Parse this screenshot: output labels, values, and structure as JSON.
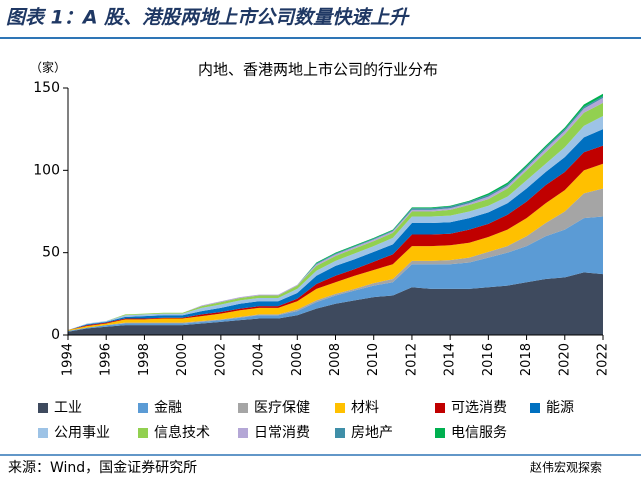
{
  "header": {
    "title": "图表 1：A 股、港股两地上市公司数量快速上升"
  },
  "chart_data": {
    "type": "stacked_area",
    "title": "内地、香港两地上市公司的行业分布",
    "y_unit": "（家）",
    "x": [
      1994,
      1995,
      1996,
      1997,
      1998,
      1999,
      2000,
      2001,
      2002,
      2003,
      2004,
      2005,
      2006,
      2007,
      2008,
      2009,
      2010,
      2011,
      2012,
      2013,
      2014,
      2015,
      2016,
      2017,
      2018,
      2019,
      2020,
      2021,
      2022
    ],
    "xlim": [
      1994,
      2022
    ],
    "xticks": [
      1994,
      1996,
      1998,
      2000,
      2002,
      2004,
      2006,
      2008,
      2010,
      2012,
      2014,
      2016,
      2018,
      2020,
      2022
    ],
    "ylim": [
      0,
      150
    ],
    "yticks": [
      0,
      50,
      100,
      150
    ],
    "series": [
      {
        "name": "工业",
        "color": "#3e4a5e",
        "values": [
          2,
          4,
          5,
          6,
          6,
          6,
          6,
          7,
          8,
          9,
          10,
          10,
          12,
          16,
          19,
          21,
          23,
          24,
          29,
          28,
          28,
          28,
          29,
          30,
          32,
          34,
          35,
          38,
          37
        ]
      },
      {
        "name": "金融",
        "color": "#5b9bd5",
        "values": [
          0.5,
          0.5,
          1,
          1,
          1,
          1,
          1,
          1,
          1,
          1.5,
          2,
          2,
          2.5,
          4,
          5,
          6,
          7,
          8,
          14,
          15,
          15,
          16,
          18,
          20,
          22,
          26,
          29,
          33,
          35
        ]
      },
      {
        "name": "医疗保健",
        "color": "#a5a5a5",
        "values": [
          0,
          0,
          0,
          0.5,
          0.5,
          0.5,
          0.5,
          0.5,
          0.5,
          0.5,
          0.5,
          0.5,
          1,
          1,
          1,
          1,
          1.5,
          2,
          2,
          2,
          2.5,
          3,
          3.5,
          4,
          6,
          8,
          11,
          15,
          17
        ]
      },
      {
        "name": "材料",
        "color": "#ffc000",
        "values": [
          0.5,
          1,
          1,
          2,
          2,
          2.5,
          2.5,
          3,
          3.5,
          4,
          4,
          4,
          5,
          7,
          7,
          8,
          8,
          9,
          9,
          9,
          9,
          9,
          9,
          10,
          11,
          12,
          13,
          14,
          15
        ]
      },
      {
        "name": "可选消费",
        "color": "#c00000",
        "values": [
          0,
          0.5,
          0.5,
          0.5,
          0.5,
          0.5,
          0.5,
          1,
          1,
          1,
          1,
          1,
          1.5,
          3,
          4,
          4,
          5,
          6,
          7,
          7,
          7,
          8,
          8,
          9,
          10,
          11,
          11,
          11,
          11
        ]
      },
      {
        "name": "能源",
        "color": "#0070c0",
        "values": [
          0,
          0.5,
          0.5,
          1,
          1.5,
          1.5,
          1.5,
          2,
          2.5,
          3,
          3,
          3,
          3.5,
          5,
          6,
          6,
          6,
          6,
          7,
          7,
          7,
          7,
          7,
          7,
          8,
          8,
          9,
          9,
          10
        ]
      },
      {
        "name": "公用事业",
        "color": "#9dc3e6",
        "values": [
          0,
          0.5,
          0.5,
          1,
          1,
          1,
          1,
          2,
          2,
          2,
          2,
          2,
          2.5,
          3,
          3,
          3.5,
          3.5,
          4,
          4,
          4,
          4,
          4,
          4,
          4,
          5,
          5,
          6,
          7,
          8
        ]
      },
      {
        "name": "信息技术",
        "color": "#92d050",
        "values": [
          0,
          0,
          0,
          0.5,
          0.5,
          0.5,
          0.5,
          1,
          1.5,
          1.5,
          1.5,
          1.5,
          2,
          3,
          3,
          3,
          3,
          3,
          3,
          3,
          3.5,
          4,
          4,
          5,
          6,
          7,
          8,
          8,
          8
        ]
      },
      {
        "name": "日常消费",
        "color": "#b4a7d6",
        "values": [
          0,
          0,
          0,
          0,
          0,
          0,
          0,
          0.5,
          0.5,
          0.5,
          0.5,
          0.5,
          0.5,
          1,
          1,
          1,
          1,
          1,
          1,
          1,
          1,
          1,
          1.5,
          1.5,
          1.5,
          2,
          2,
          2.5,
          3
        ]
      },
      {
        "name": "房地产",
        "color": "#3f8fa8",
        "values": [
          0,
          0,
          0,
          0,
          0,
          0,
          0,
          0,
          0,
          0,
          0,
          0,
          0,
          0.5,
          0.5,
          0.5,
          0.5,
          0.5,
          1,
          1,
          1,
          1,
          1,
          1,
          1,
          1,
          1,
          1,
          1
        ]
      },
      {
        "name": "电信服务",
        "color": "#00b050",
        "values": [
          0,
          0,
          0,
          0,
          0,
          0,
          0,
          0,
          0,
          0,
          0,
          0,
          0,
          0.5,
          0.5,
          0.5,
          0.5,
          0.5,
          0.5,
          0.5,
          0.5,
          0.5,
          1,
          1,
          1,
          1,
          1,
          1.5,
          1.5
        ]
      }
    ]
  },
  "footer": {
    "source": "来源：Wind，国金证券研究所",
    "watermark": "赵伟宏观探索"
  }
}
